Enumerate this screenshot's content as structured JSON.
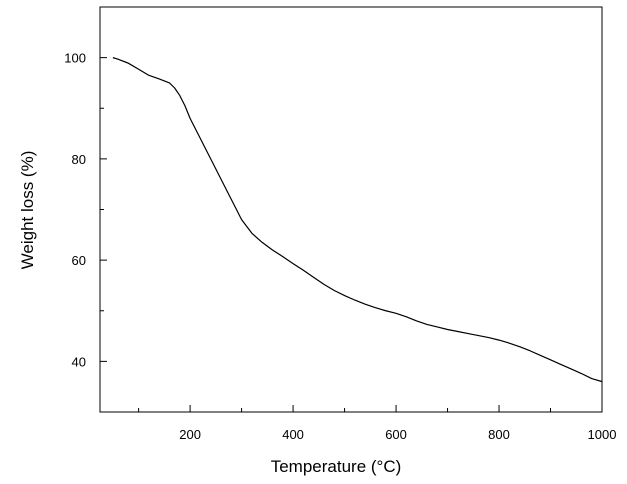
{
  "chart_data": {
    "type": "line",
    "title": "",
    "xlabel": "Temperature (°C)",
    "ylabel": "Weight loss (%)",
    "xlim": [
      25,
      1000
    ],
    "ylim": [
      30,
      110
    ],
    "x_ticks_major": [
      200,
      400,
      600,
      800,
      1000
    ],
    "x_ticks_minor": [
      100,
      300,
      500,
      700,
      900
    ],
    "y_ticks_major": [
      40,
      60,
      80,
      100
    ],
    "y_ticks_minor": [
      50,
      70,
      90
    ],
    "grid": false,
    "legend": "none",
    "series": [
      {
        "color": "#000000",
        "x": [
          50,
          60,
          80,
          100,
          120,
          140,
          160,
          170,
          180,
          190,
          200,
          220,
          240,
          260,
          280,
          300,
          320,
          340,
          360,
          380,
          400,
          420,
          440,
          460,
          480,
          500,
          520,
          540,
          560,
          580,
          600,
          620,
          640,
          660,
          680,
          700,
          720,
          740,
          760,
          780,
          800,
          820,
          840,
          860,
          880,
          900,
          920,
          940,
          960,
          980,
          1000
        ],
        "y": [
          100,
          99.7,
          98.9,
          97.7,
          96.5,
          95.8,
          95.0,
          94.0,
          92.5,
          90.5,
          88.0,
          84.0,
          80.0,
          76.0,
          72.0,
          68.0,
          65.3,
          63.5,
          62.0,
          60.7,
          59.3,
          58.0,
          56.6,
          55.2,
          54.0,
          53.0,
          52.1,
          51.3,
          50.6,
          50.0,
          49.5,
          48.8,
          48.0,
          47.3,
          46.8,
          46.3,
          45.9,
          45.5,
          45.1,
          44.7,
          44.2,
          43.6,
          42.9,
          42.1,
          41.2,
          40.3,
          39.4,
          38.5,
          37.6,
          36.6,
          36.0
        ]
      }
    ]
  }
}
